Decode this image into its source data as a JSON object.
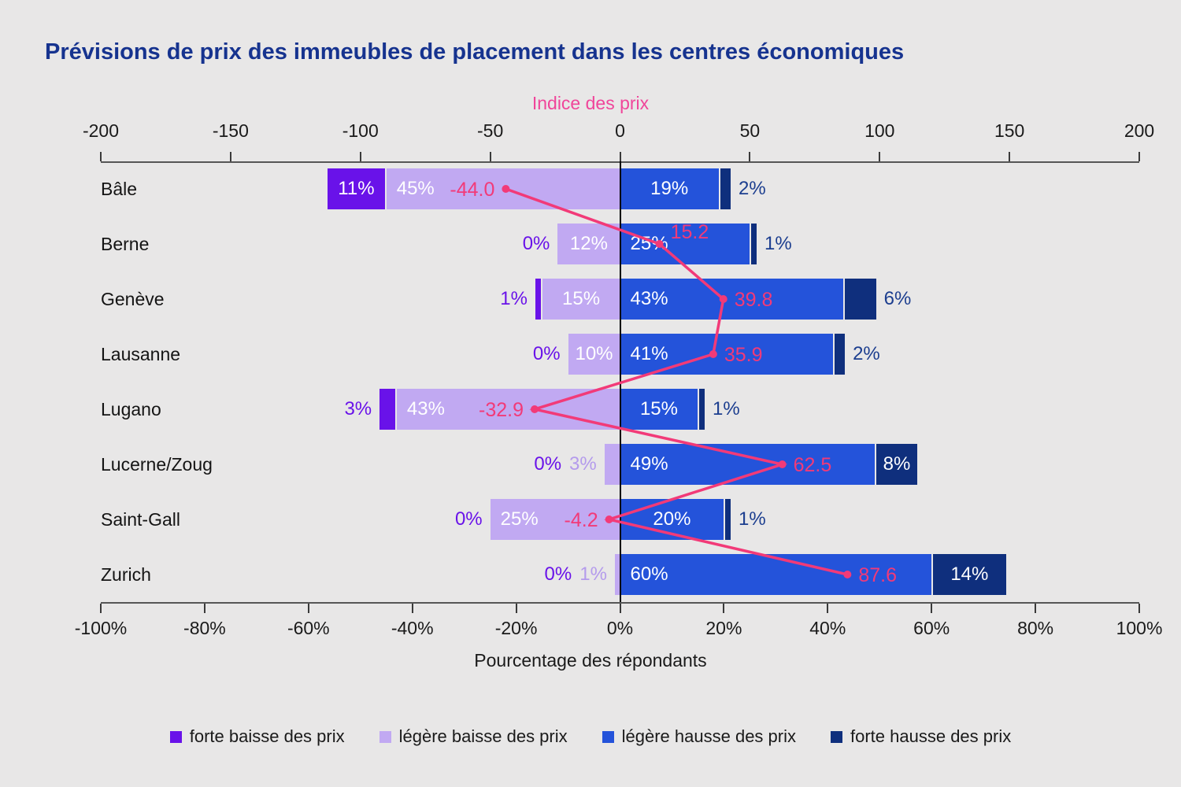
{
  "title": "Prévisions de prix des immeubles de placement dans les centres économiques",
  "chart_data": {
    "type": "bar",
    "subtype": "horizontal-diverging-stacked-with-index-line",
    "grid": false,
    "legend_position": "bottom",
    "categories": [
      "Bâle",
      "Berne",
      "Genève",
      "Lausanne",
      "Lugano",
      "Lucerne/Zoug",
      "Saint-Gall",
      "Zurich"
    ],
    "series": [
      {
        "name": "forte baisse des prix",
        "color": "#6912e9",
        "direction": "negative",
        "values": [
          11,
          0,
          1,
          0,
          3,
          0,
          0,
          0
        ]
      },
      {
        "name": "légère baisse des prix",
        "color": "#c1a9f2",
        "direction": "negative",
        "values": [
          45,
          12,
          15,
          10,
          43,
          3,
          25,
          1
        ]
      },
      {
        "name": "légère hausse des prix",
        "color": "#2453da",
        "direction": "positive",
        "values": [
          19,
          25,
          43,
          41,
          15,
          49,
          20,
          60
        ]
      },
      {
        "name": "forte hausse des prix",
        "color": "#0f2f7d",
        "direction": "positive",
        "values": [
          2,
          1,
          6,
          2,
          1,
          8,
          1,
          14
        ]
      }
    ],
    "line_series": {
      "name": "Indice des prix",
      "color": "#f23a78",
      "values": [
        -44.0,
        15.2,
        39.8,
        35.9,
        -32.9,
        62.5,
        -4.2,
        87.6
      ]
    },
    "top_axis": {
      "title": "Indice des prix",
      "min": -200,
      "max": 200,
      "ticks": [
        -200,
        -150,
        -100,
        -50,
        0,
        50,
        100,
        150,
        200
      ]
    },
    "bottom_axis": {
      "title": "Pourcentage des répondants",
      "min": -100,
      "max": 100,
      "tick_values": [
        -100,
        -80,
        -60,
        -40,
        -20,
        0,
        20,
        40,
        60,
        80,
        100
      ],
      "tick_labels": [
        "-100%",
        "-80%",
        "-60%",
        "-40%",
        "-20%",
        "0%",
        "20%",
        "40%",
        "60%",
        "80%",
        "100%"
      ]
    },
    "value_suffix": "%",
    "outside_label_colors": {
      "forte_baisse": "#6912e9",
      "legere_baisse": "#b49bec",
      "forte_hausse": "#1c3e8f"
    }
  }
}
